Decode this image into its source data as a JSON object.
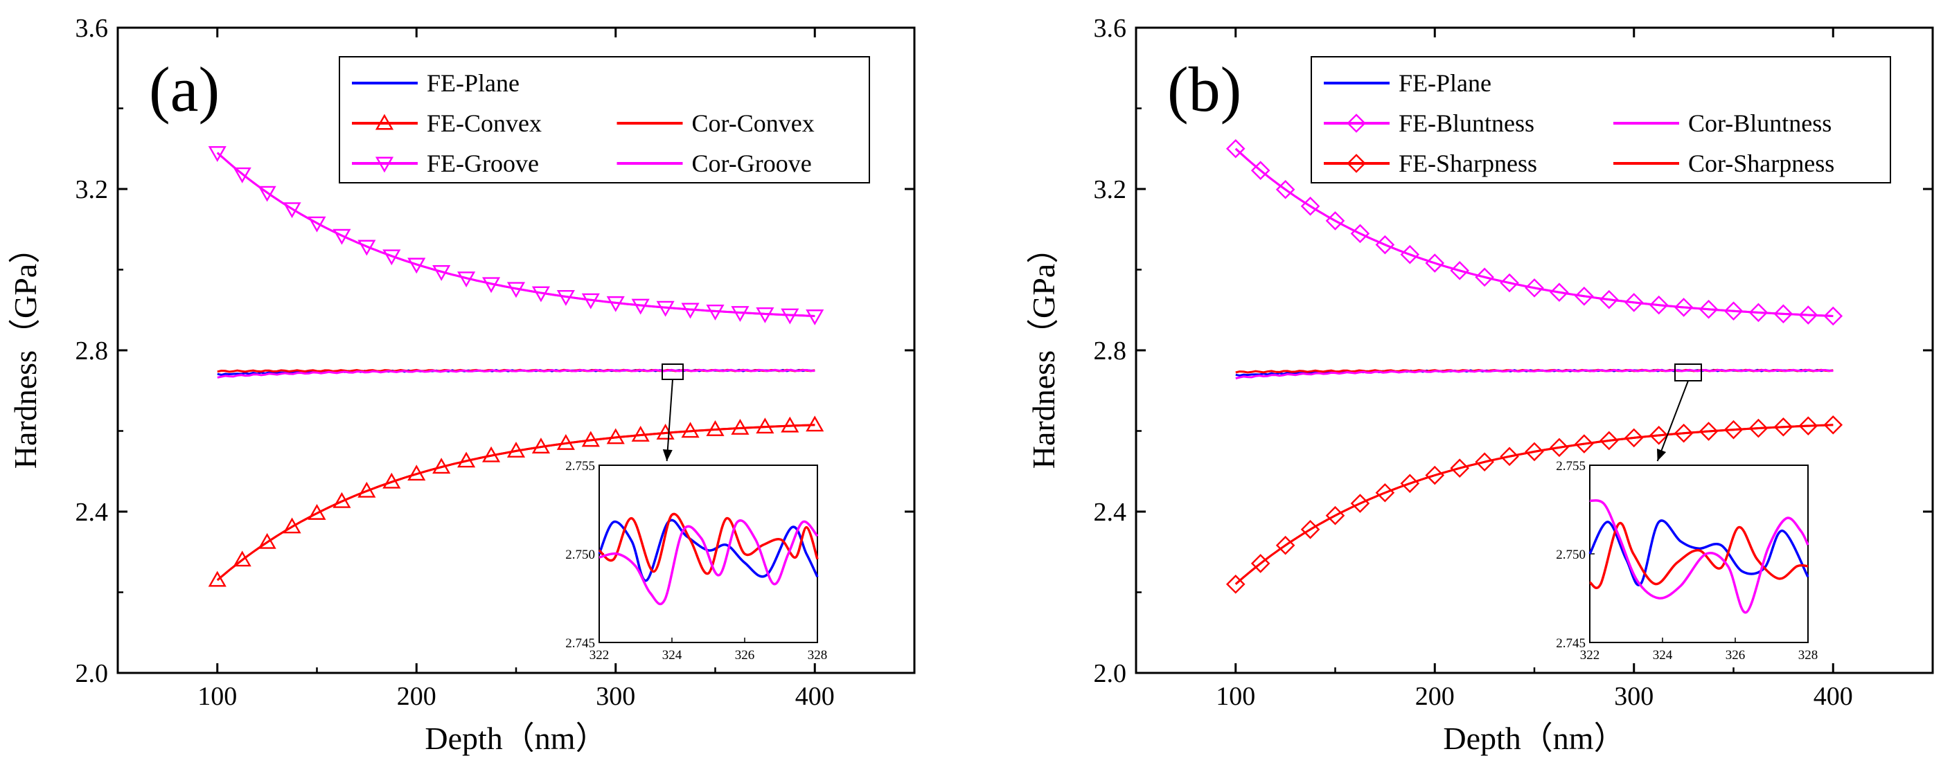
{
  "chart_data": [
    {
      "type": "line",
      "panel_label": "(a)",
      "xlabel": "Depth（nm）",
      "ylabel": "Hardness（GPa）",
      "xlim": [
        50,
        450
      ],
      "ylim": [
        2.0,
        3.6
      ],
      "xticks": [
        "100",
        "200",
        "300",
        "400"
      ],
      "yticks": [
        "2.0",
        "2.4",
        "2.8",
        "3.2",
        "3.6"
      ],
      "series": [
        {
          "name": "FE-Plane",
          "color": "#0000ff",
          "marker": "none",
          "kind": "flat",
          "start": 2.74,
          "end": 2.75
        },
        {
          "name": "FE-Convex",
          "color": "#ff0000",
          "marker": "triangle-up",
          "kind": "convex",
          "start": 2.23,
          "end": 2.615
        },
        {
          "name": "Cor-Convex",
          "color": "#ff0000",
          "marker": "none",
          "kind": "convex",
          "start": 2.23,
          "end": 2.615
        },
        {
          "name": "FE-Groove",
          "color": "#ff00ff",
          "marker": "triangle-down",
          "kind": "groove",
          "start": 3.29,
          "end": 2.885
        },
        {
          "name": "Cor-Groove",
          "color": "#ff00ff",
          "marker": "none",
          "kind": "groove",
          "start": 3.29,
          "end": 2.885
        }
      ],
      "legend": [
        [
          "FE-Plane",
          "",
          ""
        ],
        [
          "FE-Convex",
          "Cor-Convex",
          ""
        ],
        [
          "FE-Groove",
          "Cor-Groove",
          ""
        ]
      ],
      "inset": {
        "xlim": [
          322,
          328
        ],
        "ylim": [
          2.745,
          2.755
        ],
        "xticks": [
          "322",
          "324",
          "326",
          "328"
        ],
        "yticks": [
          "2.745",
          "2.750",
          "2.755"
        ],
        "zoom_center": [
          325,
          2.75
        ],
        "series": [
          {
            "name": "FE-Plane",
            "color": "#0000ff",
            "points": [
              [
                322,
                2.75
              ],
              [
                322.4,
                2.7518
              ],
              [
                322.9,
                2.7507
              ],
              [
                323.3,
                2.7485
              ],
              [
                323.9,
                2.7518
              ],
              [
                324.4,
                2.751
              ],
              [
                325.0,
                2.7502
              ],
              [
                325.5,
                2.7505
              ],
              [
                326.0,
                2.7495
              ],
              [
                326.6,
                2.7488
              ],
              [
                327.3,
                2.7515
              ],
              [
                327.7,
                2.75
              ],
              [
                328,
                2.7487
              ]
            ]
          },
          {
            "name": "Cor-Convex",
            "color": "#ff0000",
            "points": [
              [
                322,
                2.7502
              ],
              [
                322.4,
                2.7497
              ],
              [
                322.9,
                2.752
              ],
              [
                323.5,
                2.749
              ],
              [
                324.0,
                2.7522
              ],
              [
                324.5,
                2.7508
              ],
              [
                325.0,
                2.7489
              ],
              [
                325.5,
                2.752
              ],
              [
                326.0,
                2.75
              ],
              [
                326.5,
                2.7505
              ],
              [
                327.0,
                2.7508
              ],
              [
                327.4,
                2.7498
              ],
              [
                327.7,
                2.7515
              ],
              [
                328,
                2.7497
              ]
            ]
          },
          {
            "name": "Cor-Groove",
            "color": "#ff00ff",
            "points": [
              [
                322,
                2.7498
              ],
              [
                322.5,
                2.75
              ],
              [
                323.0,
                2.7493
              ],
              [
                323.4,
                2.7478
              ],
              [
                323.8,
                2.7474
              ],
              [
                324.3,
                2.7513
              ],
              [
                324.8,
                2.7509
              ],
              [
                325.3,
                2.7488
              ],
              [
                325.8,
                2.7518
              ],
              [
                326.3,
                2.7508
              ],
              [
                326.8,
                2.7483
              ],
              [
                327.2,
                2.75
              ],
              [
                327.6,
                2.7518
              ],
              [
                328,
                2.751
              ]
            ]
          }
        ]
      }
    },
    {
      "type": "line",
      "panel_label": "(b)",
      "xlabel": "Depth（nm）",
      "ylabel": "Hardness（GPa）",
      "xlim": [
        50,
        450
      ],
      "ylim": [
        2.0,
        3.6
      ],
      "xticks": [
        "100",
        "200",
        "300",
        "400"
      ],
      "yticks": [
        "2.0",
        "2.4",
        "2.8",
        "3.2",
        "3.6"
      ],
      "series": [
        {
          "name": "FE-Plane",
          "color": "#0000ff",
          "marker": "none",
          "kind": "flat",
          "start": 2.738,
          "end": 2.75
        },
        {
          "name": "FE-Bluntness",
          "color": "#ff00ff",
          "marker": "diamond",
          "kind": "groove",
          "start": 3.3,
          "end": 2.885
        },
        {
          "name": "Cor-Bluntness",
          "color": "#ff00ff",
          "marker": "none",
          "kind": "groove",
          "start": 3.3,
          "end": 2.885
        },
        {
          "name": "FE-Sharpness",
          "color": "#ff0000",
          "marker": "diamond",
          "kind": "convex",
          "start": 2.22,
          "end": 2.615
        },
        {
          "name": "Cor-Sharpness",
          "color": "#ff0000",
          "marker": "none",
          "kind": "convex",
          "start": 2.22,
          "end": 2.615
        }
      ],
      "legend": [
        [
          "FE-Plane",
          "",
          ""
        ],
        [
          "FE-Bluntness",
          "Cor-Bluntness",
          ""
        ],
        [
          "FE-Sharpness",
          "Cor-Sharpness",
          ""
        ]
      ],
      "inset": {
        "xlim": [
          322,
          328
        ],
        "ylim": [
          2.745,
          2.755
        ],
        "xticks": [
          "322",
          "324",
          "326",
          "328"
        ],
        "yticks": [
          "2.745",
          "2.750",
          "2.755"
        ],
        "zoom_center": [
          328,
          2.75
        ],
        "series": [
          {
            "name": "FE-Plane",
            "color": "#0000ff",
            "points": [
              [
                322,
                2.75
              ],
              [
                322.5,
                2.7518
              ],
              [
                323.0,
                2.7497
              ],
              [
                323.4,
                2.7483
              ],
              [
                323.9,
                2.7518
              ],
              [
                324.5,
                2.7507
              ],
              [
                325.0,
                2.7503
              ],
              [
                325.6,
                2.7505
              ],
              [
                326.2,
                2.749
              ],
              [
                326.8,
                2.7492
              ],
              [
                327.3,
                2.7513
              ],
              [
                328,
                2.7487
              ]
            ]
          },
          {
            "name": "Cor-Sharpness",
            "color": "#ff0000",
            "points": [
              [
                322,
                2.7484
              ],
              [
                322.3,
                2.7483
              ],
              [
                322.8,
                2.7517
              ],
              [
                323.2,
                2.75
              ],
              [
                323.8,
                2.7483
              ],
              [
                324.4,
                2.7495
              ],
              [
                325.0,
                2.7502
              ],
              [
                325.6,
                2.7492
              ],
              [
                326.1,
                2.7515
              ],
              [
                326.6,
                2.7497
              ],
              [
                327.2,
                2.7486
              ],
              [
                327.7,
                2.7493
              ],
              [
                328,
                2.7493
              ]
            ]
          },
          {
            "name": "Cor-Bluntness",
            "color": "#ff00ff",
            "points": [
              [
                322,
                2.753
              ],
              [
                322.4,
                2.7528
              ],
              [
                322.8,
                2.751
              ],
              [
                323.3,
                2.7485
              ],
              [
                323.9,
                2.7475
              ],
              [
                324.5,
                2.7482
              ],
              [
                325.2,
                2.75
              ],
              [
                325.8,
                2.7493
              ],
              [
                326.3,
                2.7467
              ],
              [
                326.9,
                2.7503
              ],
              [
                327.4,
                2.752
              ],
              [
                327.8,
                2.7513
              ],
              [
                328,
                2.7505
              ]
            ]
          }
        ]
      }
    }
  ]
}
